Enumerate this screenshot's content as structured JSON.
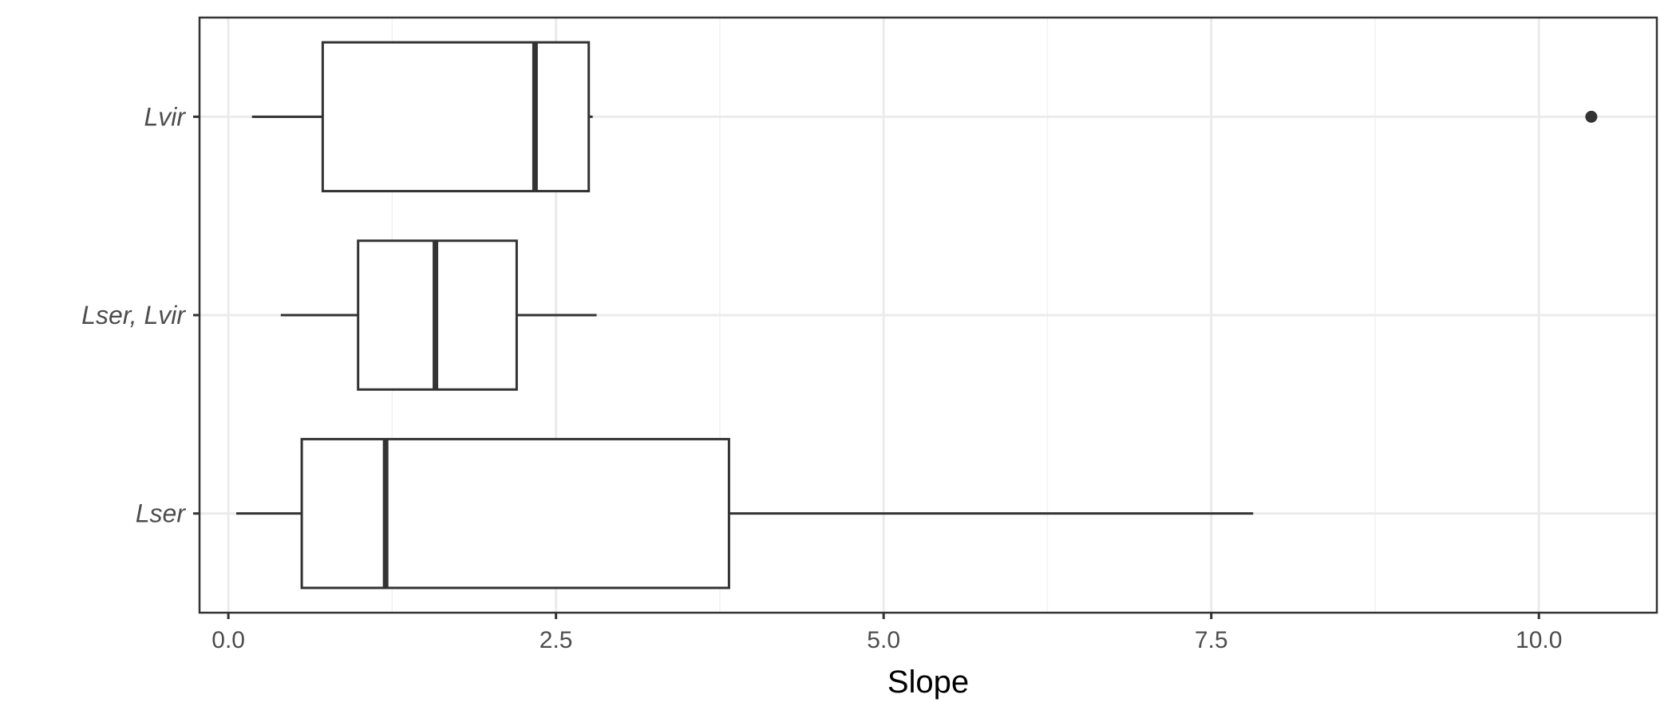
{
  "chart_data": {
    "type": "boxplot",
    "orientation": "horizontal",
    "title": "",
    "xlabel": "Slope",
    "ylabel": "",
    "xlim": [
      -0.22,
      10.9
    ],
    "x_ticks": [
      0.0,
      2.5,
      5.0,
      7.5,
      10.0
    ],
    "x_tick_labels": [
      "0.0",
      "2.5",
      "5.0",
      "7.5",
      "10.0"
    ],
    "categories": [
      "Lvir",
      "Lser, Lvir",
      "Lser"
    ],
    "boxes": [
      {
        "category": "Lvir",
        "whisker_low": 0.18,
        "q1": 0.72,
        "median": 2.34,
        "q3": 2.75,
        "whisker_high": 2.78,
        "outliers": [
          10.4
        ]
      },
      {
        "category": "Lser, Lvir",
        "whisker_low": 0.4,
        "q1": 0.99,
        "median": 1.58,
        "q3": 2.2,
        "whisker_high": 2.81,
        "outliers": []
      },
      {
        "category": "Lser",
        "whisker_low": 0.06,
        "q1": 0.56,
        "median": 1.2,
        "q3": 3.82,
        "whisker_high": 7.82,
        "outliers": []
      }
    ],
    "grid": true,
    "legend": "none",
    "colors": {
      "box_fill": "#ffffff",
      "box_stroke": "#333333",
      "grid": "#ebebeb",
      "outlier": "#333333"
    }
  }
}
